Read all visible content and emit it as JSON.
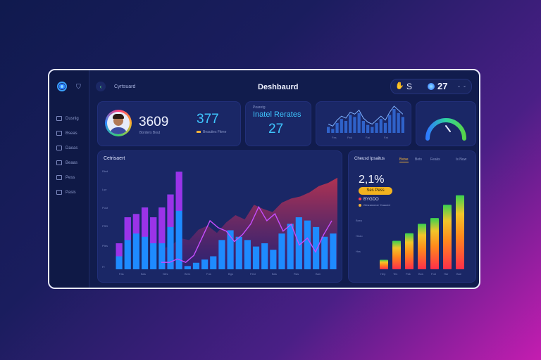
{
  "window": {
    "title": "Deshbaurd"
  },
  "breadcrumb": "Cyrtsuard",
  "top_right": {
    "symbol": "S",
    "count": "27"
  },
  "sidebar": {
    "items": [
      {
        "icon": "grid-icon",
        "label": "Dusnlg"
      },
      {
        "icon": "chart-icon",
        "label": "Bseas"
      },
      {
        "icon": "folder-icon",
        "label": "Daoas"
      },
      {
        "icon": "list-icon",
        "label": "Beaas"
      },
      {
        "icon": "pie-icon",
        "label": "Pess"
      },
      {
        "icon": "settings-icon",
        "label": "Pasis"
      }
    ]
  },
  "profile_card": {
    "stat1": "3609",
    "stat1_label": "Borders Bout",
    "stat2": "377",
    "stat2_label": "Beauties Fitme"
  },
  "rates_card": {
    "kicker": "Poaretg",
    "title": "Inatel Rerates",
    "value": "27"
  },
  "mini_chart": {
    "axis_labels": [
      "Fes",
      "Fed",
      "Fat",
      "Fat"
    ],
    "values": [
      3,
      2,
      5,
      7,
      6,
      9,
      8,
      10,
      6,
      4,
      3,
      5,
      7,
      5,
      9,
      12,
      10,
      8
    ]
  },
  "gauge": {
    "value_pct": 0.72,
    "colors": [
      "#2e7bff",
      "#2ed3a0",
      "#57d44a"
    ]
  },
  "main_chart": {
    "title": "Cetrisaert",
    "y_ticks": [
      "Rtsd",
      "Lse",
      "Pust",
      "PSD",
      "Ptes",
      "Fr"
    ],
    "x_labels": [
      "Fas",
      "Bas",
      "Ntrs",
      "Bers",
      "Fus",
      "Bgs",
      "Fest",
      "Bas",
      "Ras",
      "Ban"
    ],
    "chart_data": {
      "type": "bar",
      "bars": [
        8,
        16,
        17,
        19,
        16,
        19,
        23,
        30,
        1,
        2,
        3,
        4,
        9,
        12,
        10,
        9,
        7,
        8,
        6,
        11,
        14,
        16,
        15,
        13,
        10,
        11
      ],
      "bars_top_purple": [
        4,
        7,
        6,
        9,
        8,
        11,
        10,
        12
      ],
      "line": [
        2,
        2,
        3,
        2,
        4,
        9,
        14,
        12,
        11,
        8,
        10,
        13,
        18,
        14,
        16,
        11,
        13,
        7,
        9,
        5,
        10,
        14
      ],
      "area": [
        20,
        22,
        30,
        28,
        38,
        42,
        35,
        45,
        52,
        48,
        62,
        58,
        55,
        64,
        68,
        70,
        74,
        80,
        83,
        88
      ]
    }
  },
  "right_chart": {
    "title": "Cheusd Ipsaitus",
    "tabs": [
      "Bstse",
      "Bets",
      "Feaks",
      "Is Nuw"
    ],
    "stat": "2,1%",
    "pill": "Ses Pess",
    "legend": [
      {
        "color": "#ff3b4f",
        "label": "BYGDO"
      },
      {
        "color": "#f2b23a",
        "label": "Gesranceoe Yruaced"
      }
    ],
    "y_ticks": [
      "Bsep",
      "Heao",
      "Hss"
    ],
    "x_labels": [
      "Hep",
      "Tes",
      "Pak",
      "Bos",
      "Fod",
      "Har",
      "Bae"
    ],
    "chart_data": {
      "type": "bar",
      "categories": [
        "Hep",
        "Tes",
        "Pak",
        "Bos",
        "Fod",
        "Har",
        "Bae"
      ],
      "values": [
        10,
        30,
        38,
        48,
        54,
        68,
        78
      ]
    }
  }
}
